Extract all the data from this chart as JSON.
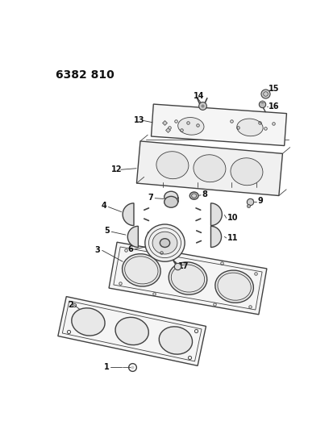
{
  "title": "6382 810",
  "bg": "#ffffff",
  "lc": "#404040",
  "fc": "#f0f0f0",
  "label_fs": 7,
  "title_fs": 10
}
